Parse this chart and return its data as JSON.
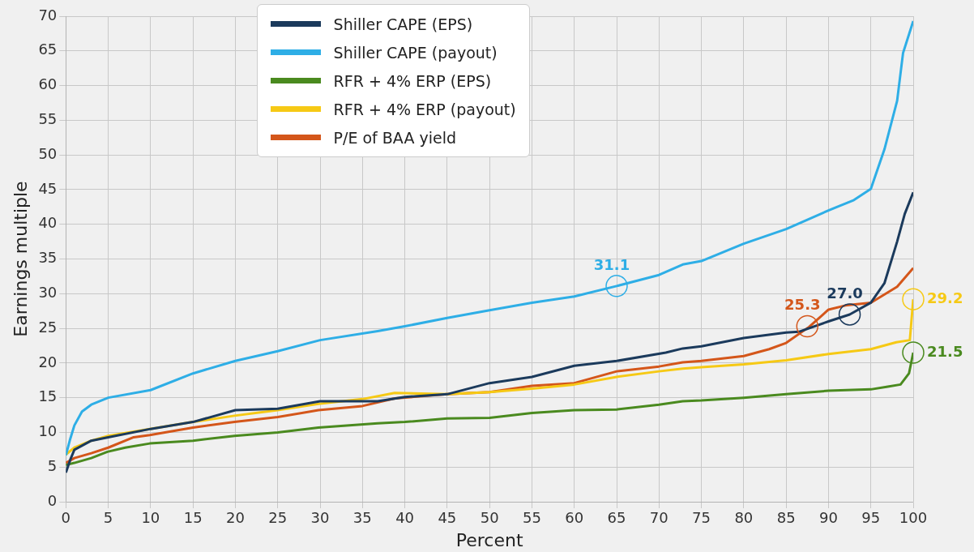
{
  "chart_data": {
    "type": "line",
    "xlabel": "Percent",
    "ylabel": "Earnings multiple",
    "xlim": [
      0,
      100
    ],
    "xticks": [
      0,
      5,
      10,
      15,
      20,
      25,
      30,
      35,
      40,
      45,
      50,
      55,
      60,
      65,
      70,
      75,
      80,
      85,
      90,
      95,
      100
    ],
    "ylim": [
      0,
      70
    ],
    "yticks": [
      0,
      5,
      10,
      15,
      20,
      25,
      30,
      35,
      40,
      45,
      50,
      55,
      60,
      65,
      70
    ],
    "grid": true,
    "legend": "top",
    "marker": "none",
    "line_style": "solid",
    "series": [
      {
        "name": "Shiller CAPE (EPS)",
        "color": "#1b3a5c",
        "x": [
          0,
          0.5,
          1,
          3,
          5,
          10,
          15,
          20,
          25,
          30,
          36.8,
          40,
          45,
          50,
          55,
          60,
          65,
          70.8,
          72.8,
          75,
          80,
          85,
          86.5,
          90,
          92.5,
          95,
          96.6,
          98.1,
          99,
          100
        ],
        "values": [
          4.2,
          6,
          7.5,
          8.8,
          9.3,
          10.5,
          11.5,
          13.2,
          13.4,
          14.5,
          14.5,
          15.1,
          15.5,
          17.1,
          18,
          19.6,
          20.3,
          21.5,
          22.1,
          22.4,
          23.6,
          24.4,
          24.5,
          26,
          27,
          28.7,
          31.5,
          37.5,
          41.5,
          44.6
        ]
      },
      {
        "name": "Shiller CAPE (payout)",
        "color": "#2eaee6",
        "x": [
          0,
          0.5,
          1,
          1.9,
          3,
          5,
          10,
          15,
          20,
          25,
          30,
          36.8,
          40,
          45,
          50,
          55,
          60,
          65,
          70,
          72.8,
          75,
          80,
          85,
          90,
          93,
          95,
          96.6,
          98.1,
          98.8,
          100
        ],
        "values": [
          6.7,
          9,
          11,
          13,
          14,
          15,
          16.1,
          18.5,
          20.3,
          21.7,
          23.3,
          24.6,
          25.3,
          26.5,
          27.6,
          28.7,
          29.6,
          31.1,
          32.7,
          34.2,
          34.7,
          37.2,
          39.3,
          42,
          43.5,
          45.1,
          50.8,
          57.8,
          64.7,
          69.3
        ]
      },
      {
        "name": "RFR + 4% ERP (EPS)",
        "color": "#4a8a1f",
        "x": [
          0,
          1,
          3,
          4.9,
          7,
          9.9,
          15,
          19.9,
          25,
          29.8,
          36.8,
          40,
          45,
          50,
          55,
          60,
          65,
          70,
          72.8,
          75,
          80,
          85,
          90,
          95,
          97,
          98.5,
          99.5,
          100
        ],
        "values": [
          5.3,
          5.6,
          6.3,
          7.2,
          7.8,
          8.4,
          8.8,
          9.5,
          10,
          10.7,
          11.3,
          11.5,
          12,
          12.1,
          12.8,
          13.2,
          13.3,
          14,
          14.5,
          14.6,
          15,
          15.5,
          16,
          16.2,
          16.6,
          16.9,
          18.5,
          21.5
        ]
      },
      {
        "name": "RFR + 4% ERP (payout)",
        "color": "#f6c915",
        "x": [
          0,
          1,
          3,
          5,
          9.9,
          15,
          19.9,
          25,
          29.8,
          35,
          38.8,
          45,
          50,
          55,
          60,
          65,
          70,
          72.8,
          75,
          80,
          85,
          90,
          95,
          98,
          99.6,
          100
        ],
        "values": [
          6.8,
          7.8,
          8.8,
          9.5,
          10.5,
          11.5,
          12.4,
          13.2,
          14.1,
          14.8,
          15.7,
          15.5,
          15.8,
          16.3,
          16.9,
          18,
          18.8,
          19.2,
          19.4,
          19.8,
          20.4,
          21.3,
          22,
          23,
          23.3,
          29.2
        ]
      },
      {
        "name": "P/E of BAA yield",
        "color": "#d4561a",
        "x": [
          0,
          1,
          3,
          5,
          8,
          9.9,
          15,
          19.9,
          25,
          29.8,
          35,
          38.8,
          45,
          50,
          55,
          60,
          65,
          70,
          72.8,
          75,
          80,
          83,
          85,
          87.7,
          90,
          92,
          95,
          98.1,
          100
        ],
        "values": [
          5.6,
          6.3,
          7,
          7.8,
          9.3,
          9.6,
          10.7,
          11.5,
          12.2,
          13.2,
          13.8,
          14.9,
          15.5,
          15.8,
          16.7,
          17.1,
          18.8,
          19.5,
          20.1,
          20.3,
          21,
          22,
          22.9,
          25.2,
          27.7,
          28.3,
          28.7,
          31,
          33.7
        ]
      }
    ],
    "annotations": [
      {
        "text": "31.1",
        "x": 65,
        "y": 31.1
      },
      {
        "text": "25.3",
        "x": 87.5,
        "y": 25.3
      },
      {
        "text": "27.0",
        "x": 92.5,
        "y": 27.0
      },
      {
        "text": "29.2",
        "x": 100,
        "y": 29.2
      },
      {
        "text": "21.5",
        "x": 100,
        "y": 21.5
      }
    ]
  }
}
